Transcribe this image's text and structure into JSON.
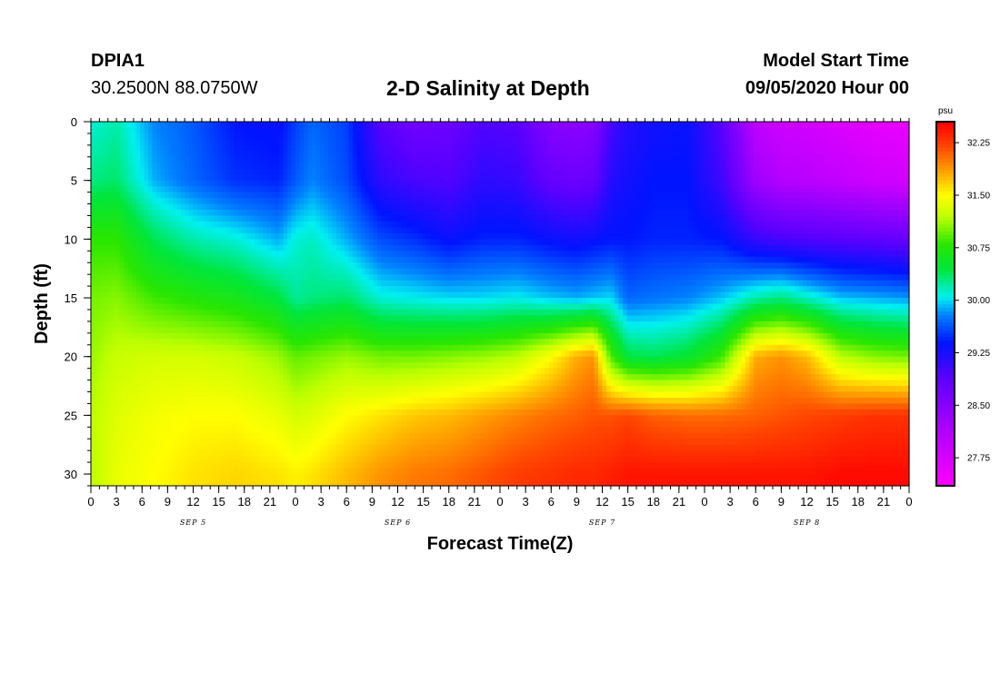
{
  "header": {
    "station_id": "DPIA1",
    "coords": "30.2500N 88.0750W",
    "title": "2-D Salinity at Depth",
    "start_label": "Model Start Time",
    "start_value": "09/05/2020 Hour 00"
  },
  "chart_data": {
    "type": "heatmap",
    "title": "2-D Salinity at Depth",
    "xlabel": "Forecast Time(Z)",
    "ylabel": "Depth (ft)",
    "x_ticks": [
      "0",
      "3",
      "6",
      "9",
      "12",
      "15",
      "18",
      "21",
      "0",
      "3",
      "6",
      "9",
      "12",
      "15",
      "18",
      "21",
      "0",
      "3",
      "6",
      "9",
      "12",
      "15",
      "18",
      "21",
      "0",
      "3",
      "6",
      "9",
      "12",
      "15",
      "18",
      "21",
      "0"
    ],
    "x_range_hours": [
      0,
      96
    ],
    "date_labels": [
      {
        "label": "SEP 5",
        "hour": 12
      },
      {
        "label": "SEP 6",
        "hour": 36
      },
      {
        "label": "SEP 7",
        "hour": 60
      },
      {
        "label": "SEP 8",
        "hour": 84
      }
    ],
    "y_ticks": [
      "0",
      "5",
      "10",
      "15",
      "20",
      "25",
      "30"
    ],
    "ylim": [
      0,
      31
    ],
    "y_inverted": true,
    "colorbar": {
      "unit": "psu",
      "range": [
        27.35,
        32.55
      ],
      "ticks": [
        "32.25",
        "31.50",
        "30.75",
        "30.00",
        "29.25",
        "28.50",
        "27.75"
      ],
      "tick_values": [
        32.25,
        31.5,
        30.75,
        30.0,
        29.25,
        28.5,
        27.75
      ]
    },
    "profile_hours": [
      0,
      3,
      7.5,
      12,
      17,
      22,
      24,
      26,
      30,
      34,
      38,
      42,
      46,
      50,
      54,
      57,
      59,
      61,
      63,
      66,
      70,
      74,
      78,
      81,
      84,
      88,
      92,
      96
    ],
    "depths_ft": [
      0,
      5,
      10,
      15,
      20,
      25,
      30
    ],
    "salinity_psu": [
      [
        30.1,
        30.3,
        30.8,
        31.0,
        31.1,
        31.2,
        31.2
      ],
      [
        30.2,
        30.35,
        30.8,
        31.05,
        31.25,
        31.35,
        31.4
      ],
      [
        29.8,
        29.9,
        30.4,
        30.85,
        31.3,
        31.45,
        31.5
      ],
      [
        29.65,
        29.7,
        30.2,
        30.75,
        31.3,
        31.5,
        31.6
      ],
      [
        29.4,
        29.5,
        30.1,
        30.65,
        31.25,
        31.5,
        31.65
      ],
      [
        29.35,
        29.45,
        29.9,
        30.45,
        31.1,
        31.4,
        31.6
      ],
      [
        29.55,
        29.65,
        30.1,
        30.25,
        30.95,
        31.3,
        31.55
      ],
      [
        29.7,
        29.8,
        30.15,
        30.3,
        31.0,
        31.35,
        31.6
      ],
      [
        29.55,
        29.6,
        29.9,
        30.35,
        31.1,
        31.5,
        31.75
      ],
      [
        28.9,
        29.15,
        29.6,
        30.1,
        31.0,
        31.6,
        31.9
      ],
      [
        28.7,
        29.0,
        29.5,
        30.05,
        31.0,
        31.7,
        32.0
      ],
      [
        28.75,
        28.95,
        29.35,
        30.0,
        31.05,
        31.75,
        32.05
      ],
      [
        28.95,
        29.15,
        29.45,
        30.0,
        31.1,
        31.85,
        32.15
      ],
      [
        28.9,
        29.1,
        29.45,
        30.05,
        31.2,
        31.95,
        32.25
      ],
      [
        28.5,
        28.8,
        29.35,
        29.95,
        31.5,
        32.05,
        32.3
      ],
      [
        28.45,
        28.75,
        29.3,
        29.9,
        31.8,
        32.1,
        32.35
      ],
      [
        28.5,
        28.8,
        29.35,
        29.95,
        31.9,
        32.15,
        32.35
      ],
      [
        29.0,
        29.2,
        29.4,
        30.0,
        30.9,
        32.15,
        32.4
      ],
      [
        29.2,
        29.3,
        29.4,
        29.7,
        30.45,
        32.2,
        32.45
      ],
      [
        29.3,
        29.4,
        29.45,
        29.75,
        30.4,
        32.1,
        32.45
      ],
      [
        29.35,
        29.4,
        29.45,
        29.8,
        30.5,
        32.05,
        32.45
      ],
      [
        28.9,
        29.05,
        29.4,
        29.95,
        30.85,
        32.05,
        32.45
      ],
      [
        28.0,
        28.3,
        29.1,
        30.2,
        31.8,
        32.1,
        32.45
      ],
      [
        27.85,
        28.1,
        29.0,
        30.3,
        31.9,
        32.15,
        32.45
      ],
      [
        27.8,
        28.05,
        28.95,
        30.15,
        31.75,
        32.2,
        32.45
      ],
      [
        27.7,
        27.95,
        28.9,
        29.95,
        31.2,
        32.25,
        32.5
      ],
      [
        27.6,
        27.85,
        28.85,
        29.9,
        31.05,
        32.3,
        32.5
      ],
      [
        27.55,
        27.8,
        28.8,
        29.85,
        31.0,
        32.3,
        32.5
      ]
    ]
  }
}
